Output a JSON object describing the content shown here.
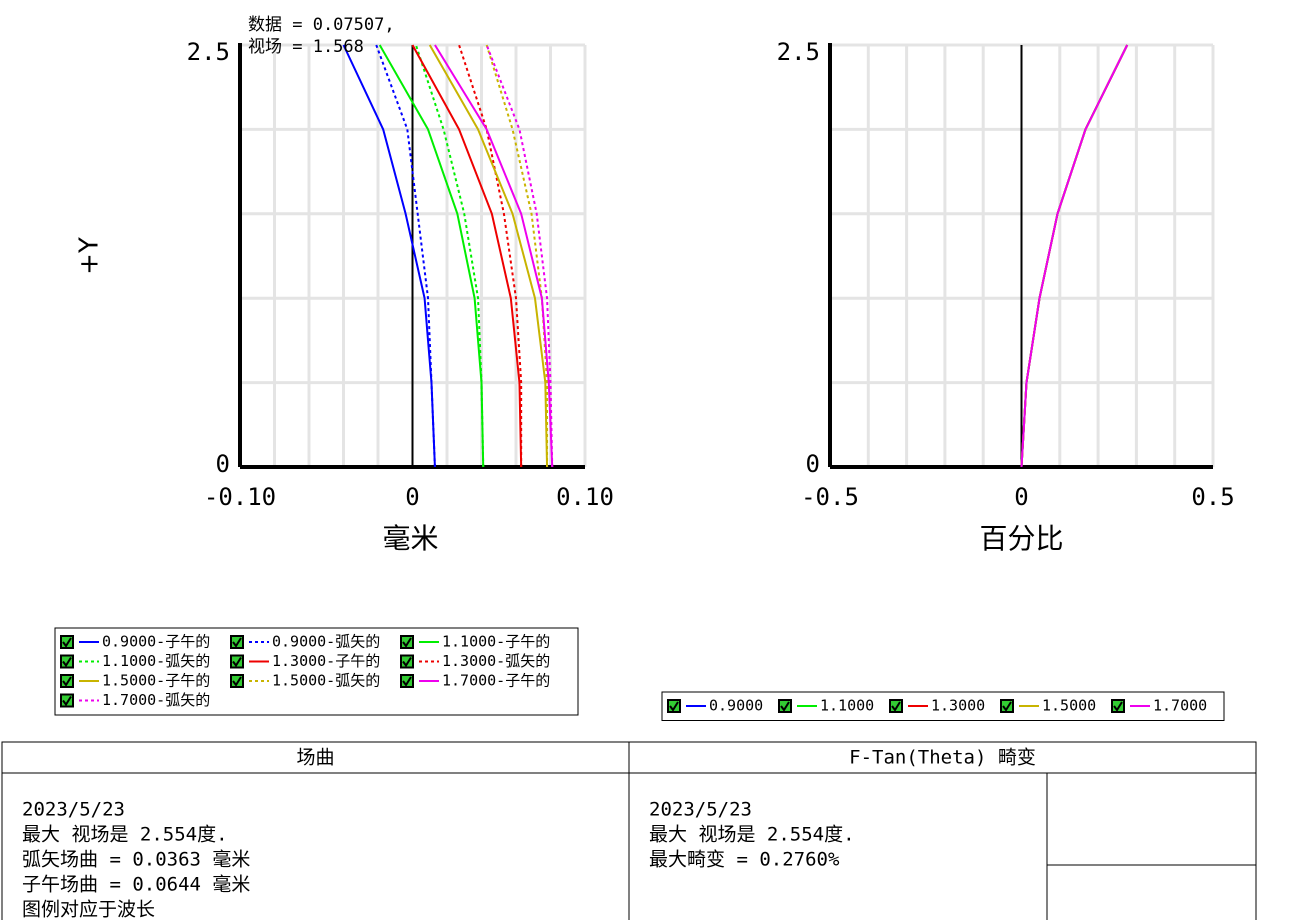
{
  "chart_data": [
    {
      "type": "line",
      "annotation": [
        "数据 = 0.07507,",
        "视场 = 1.568"
      ],
      "ylabel": "+Y",
      "xlabel": "毫米",
      "field": [
        0,
        0.5,
        1.0,
        1.5,
        2.0,
        2.5
      ],
      "xlim": [
        -0.1,
        0.1
      ],
      "ylim": [
        0,
        2.5
      ],
      "xticks": [
        {
          "value": -0.1,
          "label": "-0.10"
        },
        0,
        {
          "value": 0.1,
          "label": "0.10"
        }
      ],
      "yticks": [
        0,
        2.5
      ],
      "xgrid": [
        -0.08,
        -0.06,
        -0.04,
        -0.02,
        0.02,
        0.04,
        0.06,
        0.08
      ],
      "ygrid": [
        0.5,
        1.0,
        1.5,
        2.0
      ],
      "legend_columns": 3,
      "series": [
        {
          "name": "0.9000-子午的",
          "color": "#0000ff",
          "style": "solid",
          "values": [
            0.013,
            0.011,
            0.007,
            -0.004,
            -0.017,
            -0.04
          ]
        },
        {
          "name": "0.9000-弧矢的",
          "color": "#0000ff",
          "style": "dotted",
          "values": [
            0.013,
            0.011,
            0.009,
            0.003,
            -0.003,
            -0.021
          ]
        },
        {
          "name": "1.1000-子午的",
          "color": "#00ee00",
          "style": "solid",
          "values": [
            0.041,
            0.04,
            0.036,
            0.026,
            0.009,
            -0.019
          ]
        },
        {
          "name": "1.1000-弧矢的",
          "color": "#00ee00",
          "style": "dotted",
          "values": [
            0.041,
            0.04,
            0.038,
            0.03,
            0.018,
            0.002
          ]
        },
        {
          "name": "1.3000-子午的",
          "color": "#ee0000",
          "style": "solid",
          "values": [
            0.063,
            0.062,
            0.057,
            0.046,
            0.027,
            0.0
          ]
        },
        {
          "name": "1.3000-弧矢的",
          "color": "#ee0000",
          "style": "dotted",
          "values": [
            0.063,
            0.063,
            0.06,
            0.053,
            0.043,
            0.027
          ]
        },
        {
          "name": "1.5000-子午的",
          "color": "#c8b400",
          "style": "solid",
          "values": [
            0.078,
            0.077,
            0.071,
            0.058,
            0.038,
            0.01
          ]
        },
        {
          "name": "1.5000-弧矢的",
          "color": "#c8b400",
          "style": "dotted",
          "values": [
            0.078,
            0.078,
            0.075,
            0.069,
            0.058,
            0.043
          ]
        },
        {
          "name": "1.7000-子午的",
          "color": "#ee00ee",
          "style": "solid",
          "values": [
            0.081,
            0.079,
            0.075,
            0.063,
            0.043,
            0.013
          ]
        },
        {
          "name": "1.7000-弧矢的",
          "color": "#ee00ee",
          "style": "dotted",
          "values": [
            0.081,
            0.08,
            0.078,
            0.072,
            0.062,
            0.043
          ]
        }
      ]
    },
    {
      "type": "line",
      "xlabel": "百分比",
      "field": [
        0,
        0.5,
        1.0,
        1.5,
        2.0,
        2.5
      ],
      "xlim": [
        -0.5,
        0.5
      ],
      "ylim": [
        0,
        2.5
      ],
      "xticks": [
        -0.5,
        0,
        0.5
      ],
      "yticks": [
        0,
        2.5
      ],
      "xgrid": [
        -0.4,
        -0.3,
        -0.2,
        -0.1,
        0.1,
        0.2,
        0.3,
        0.4
      ],
      "ygrid": [
        0.5,
        1.0,
        1.5,
        2.0
      ],
      "legend_columns": 5,
      "series": [
        {
          "name": "0.9000",
          "color": "#0000ff",
          "style": "solid",
          "values": [
            0,
            0.013,
            0.047,
            0.094,
            0.167,
            0.276
          ]
        },
        {
          "name": "1.1000",
          "color": "#00ee00",
          "style": "solid",
          "values": [
            0,
            0.013,
            0.047,
            0.094,
            0.167,
            0.276
          ]
        },
        {
          "name": "1.3000",
          "color": "#ee0000",
          "style": "solid",
          "values": [
            0,
            0.013,
            0.047,
            0.094,
            0.167,
            0.276
          ]
        },
        {
          "name": "1.5000",
          "color": "#c8b400",
          "style": "solid",
          "values": [
            0,
            0.013,
            0.047,
            0.094,
            0.167,
            0.276
          ]
        },
        {
          "name": "1.7000",
          "color": "#ee00ee",
          "style": "solid",
          "values": [
            0,
            0.013,
            0.047,
            0.094,
            0.167,
            0.276
          ]
        }
      ]
    }
  ],
  "panels": [
    {
      "title": "场曲",
      "lines": [
        "2023/5/23",
        "最大 视场是 2.554度.",
        "弧矢场曲 = 0.0363 毫米",
        "子午场曲 = 0.0644 毫米",
        "图例对应于波长"
      ]
    },
    {
      "title": "F-Tan(Theta) 畸变",
      "lines": [
        "2023/5/23",
        "最大 视场是 2.554度.",
        "最大畸变 = 0.2760%"
      ]
    }
  ]
}
